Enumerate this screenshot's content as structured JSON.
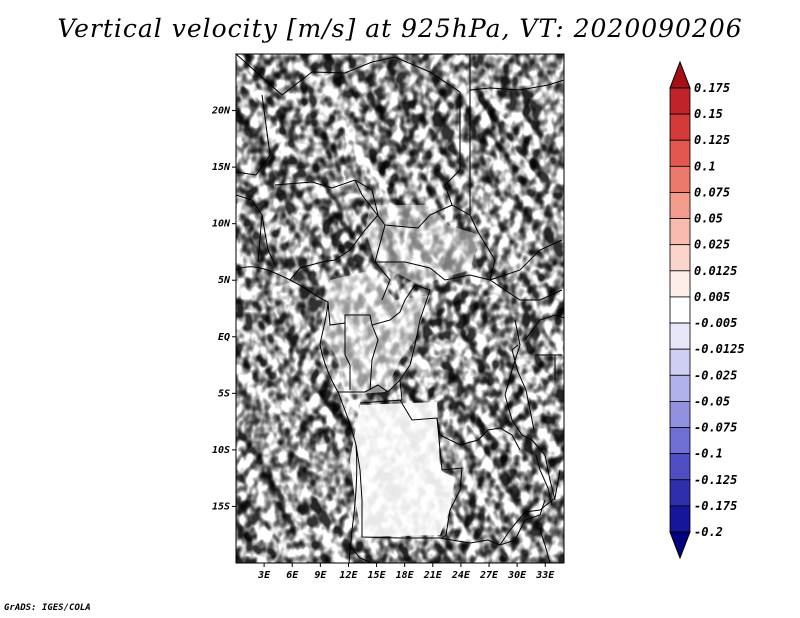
{
  "title": "Vertical velocity [m/s] at 925hPa, VT: 2020090206",
  "credit": "GrADS: IGES/COLA",
  "map": {
    "lon_range": [
      0,
      35
    ],
    "lat_range": [
      -20,
      25
    ],
    "lat_labels": [
      "20N",
      "15N",
      "10N",
      "5N",
      "EQ",
      "5S",
      "10S",
      "15S"
    ],
    "lat_values": [
      20,
      15,
      10,
      5,
      0,
      -5,
      -10,
      -15
    ],
    "lon_labels": [
      "3E",
      "6E",
      "9E",
      "12E",
      "15E",
      "18E",
      "21E",
      "24E",
      "27E",
      "30E",
      "33E"
    ],
    "lon_values": [
      3,
      6,
      9,
      12,
      15,
      18,
      21,
      24,
      27,
      30,
      33
    ]
  },
  "colorbar": {
    "labels": [
      "0.175",
      "0.15",
      "0.125",
      "0.1",
      "0.075",
      "0.05",
      "0.025",
      "0.0125",
      "0.005",
      "-0.005",
      "-0.0125",
      "-0.025",
      "-0.05",
      "-0.075",
      "-0.1",
      "-0.125",
      "-0.175",
      "-0.2"
    ],
    "colors": [
      "#a50f15",
      "#c0242a",
      "#d5393a",
      "#e2584f",
      "#ec7a6c",
      "#f39c8c",
      "#f8bcae",
      "#fbd5cb",
      "#fdeee9",
      "#ffffff",
      "#e7e7f9",
      "#cfcff3",
      "#b1b1eb",
      "#9191e0",
      "#7070d3",
      "#4f4fc3",
      "#2f2fae",
      "#16169a",
      "#000080"
    ]
  },
  "colors": {
    "top_arrow": "#a50f15",
    "bottom_arrow": "#000080"
  }
}
